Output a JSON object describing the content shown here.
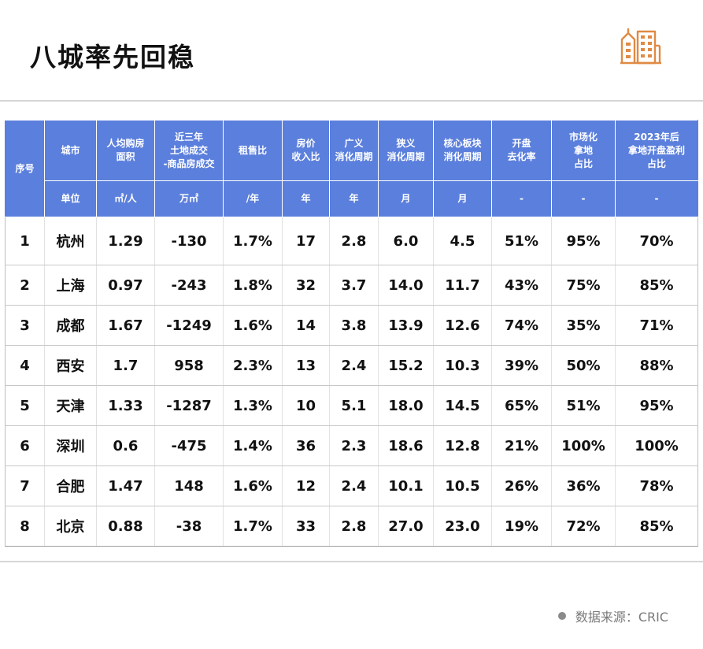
{
  "page": {
    "title": "八城率先回稳",
    "source_label": "数据来源：CRIC"
  },
  "table": {
    "headers": [
      "序号",
      "城市",
      "人均购房\n面积",
      "近三年\n土地成交\n-商品房成交",
      "租售比",
      "房价\n收入比",
      "广义\n消化周期",
      "狭义\n消化周期",
      "核心板块\n消化周期",
      "开盘\n去化率",
      "市场化\n拿地\n占比",
      "2023年后\n拿地开盘盈利\n占比"
    ],
    "units": [
      "单位",
      "㎡/人",
      "万㎡",
      "/年",
      "年",
      "年",
      "月",
      "月",
      "-",
      "-",
      "-"
    ],
    "rows": [
      [
        "1",
        "杭州",
        "1.29",
        "-130",
        "1.7%",
        "17",
        "2.8",
        "6.0",
        "4.5",
        "51%",
        "95%",
        "70%"
      ],
      [
        "2",
        "上海",
        "0.97",
        "-243",
        "1.8%",
        "32",
        "3.7",
        "14.0",
        "11.7",
        "43%",
        "75%",
        "85%"
      ],
      [
        "3",
        "成都",
        "1.67",
        "-1249",
        "1.6%",
        "14",
        "3.8",
        "13.9",
        "12.6",
        "74%",
        "35%",
        "71%"
      ],
      [
        "4",
        "西安",
        "1.7",
        "958",
        "2.3%",
        "13",
        "2.4",
        "15.2",
        "10.3",
        "39%",
        "50%",
        "88%"
      ],
      [
        "5",
        "天津",
        "1.33",
        "-1287",
        "1.3%",
        "10",
        "5.1",
        "18.0",
        "14.5",
        "65%",
        "51%",
        "95%"
      ],
      [
        "6",
        "深圳",
        "0.6",
        "-475",
        "1.4%",
        "36",
        "2.3",
        "18.6",
        "12.8",
        "21%",
        "100%",
        "100%"
      ],
      [
        "7",
        "合肥",
        "1.47",
        "148",
        "1.6%",
        "12",
        "2.4",
        "10.1",
        "10.5",
        "26%",
        "36%",
        "78%"
      ],
      [
        "8",
        "北京",
        "0.88",
        "-38",
        "1.7%",
        "33",
        "2.8",
        "27.0",
        "23.0",
        "19%",
        "72%",
        "85%"
      ]
    ]
  },
  "colors": {
    "header_bg": "#5b7fdc",
    "logo": "#e08a44"
  },
  "icons": {
    "logo": "buildings-icon",
    "source_dot": "dot-icon"
  }
}
